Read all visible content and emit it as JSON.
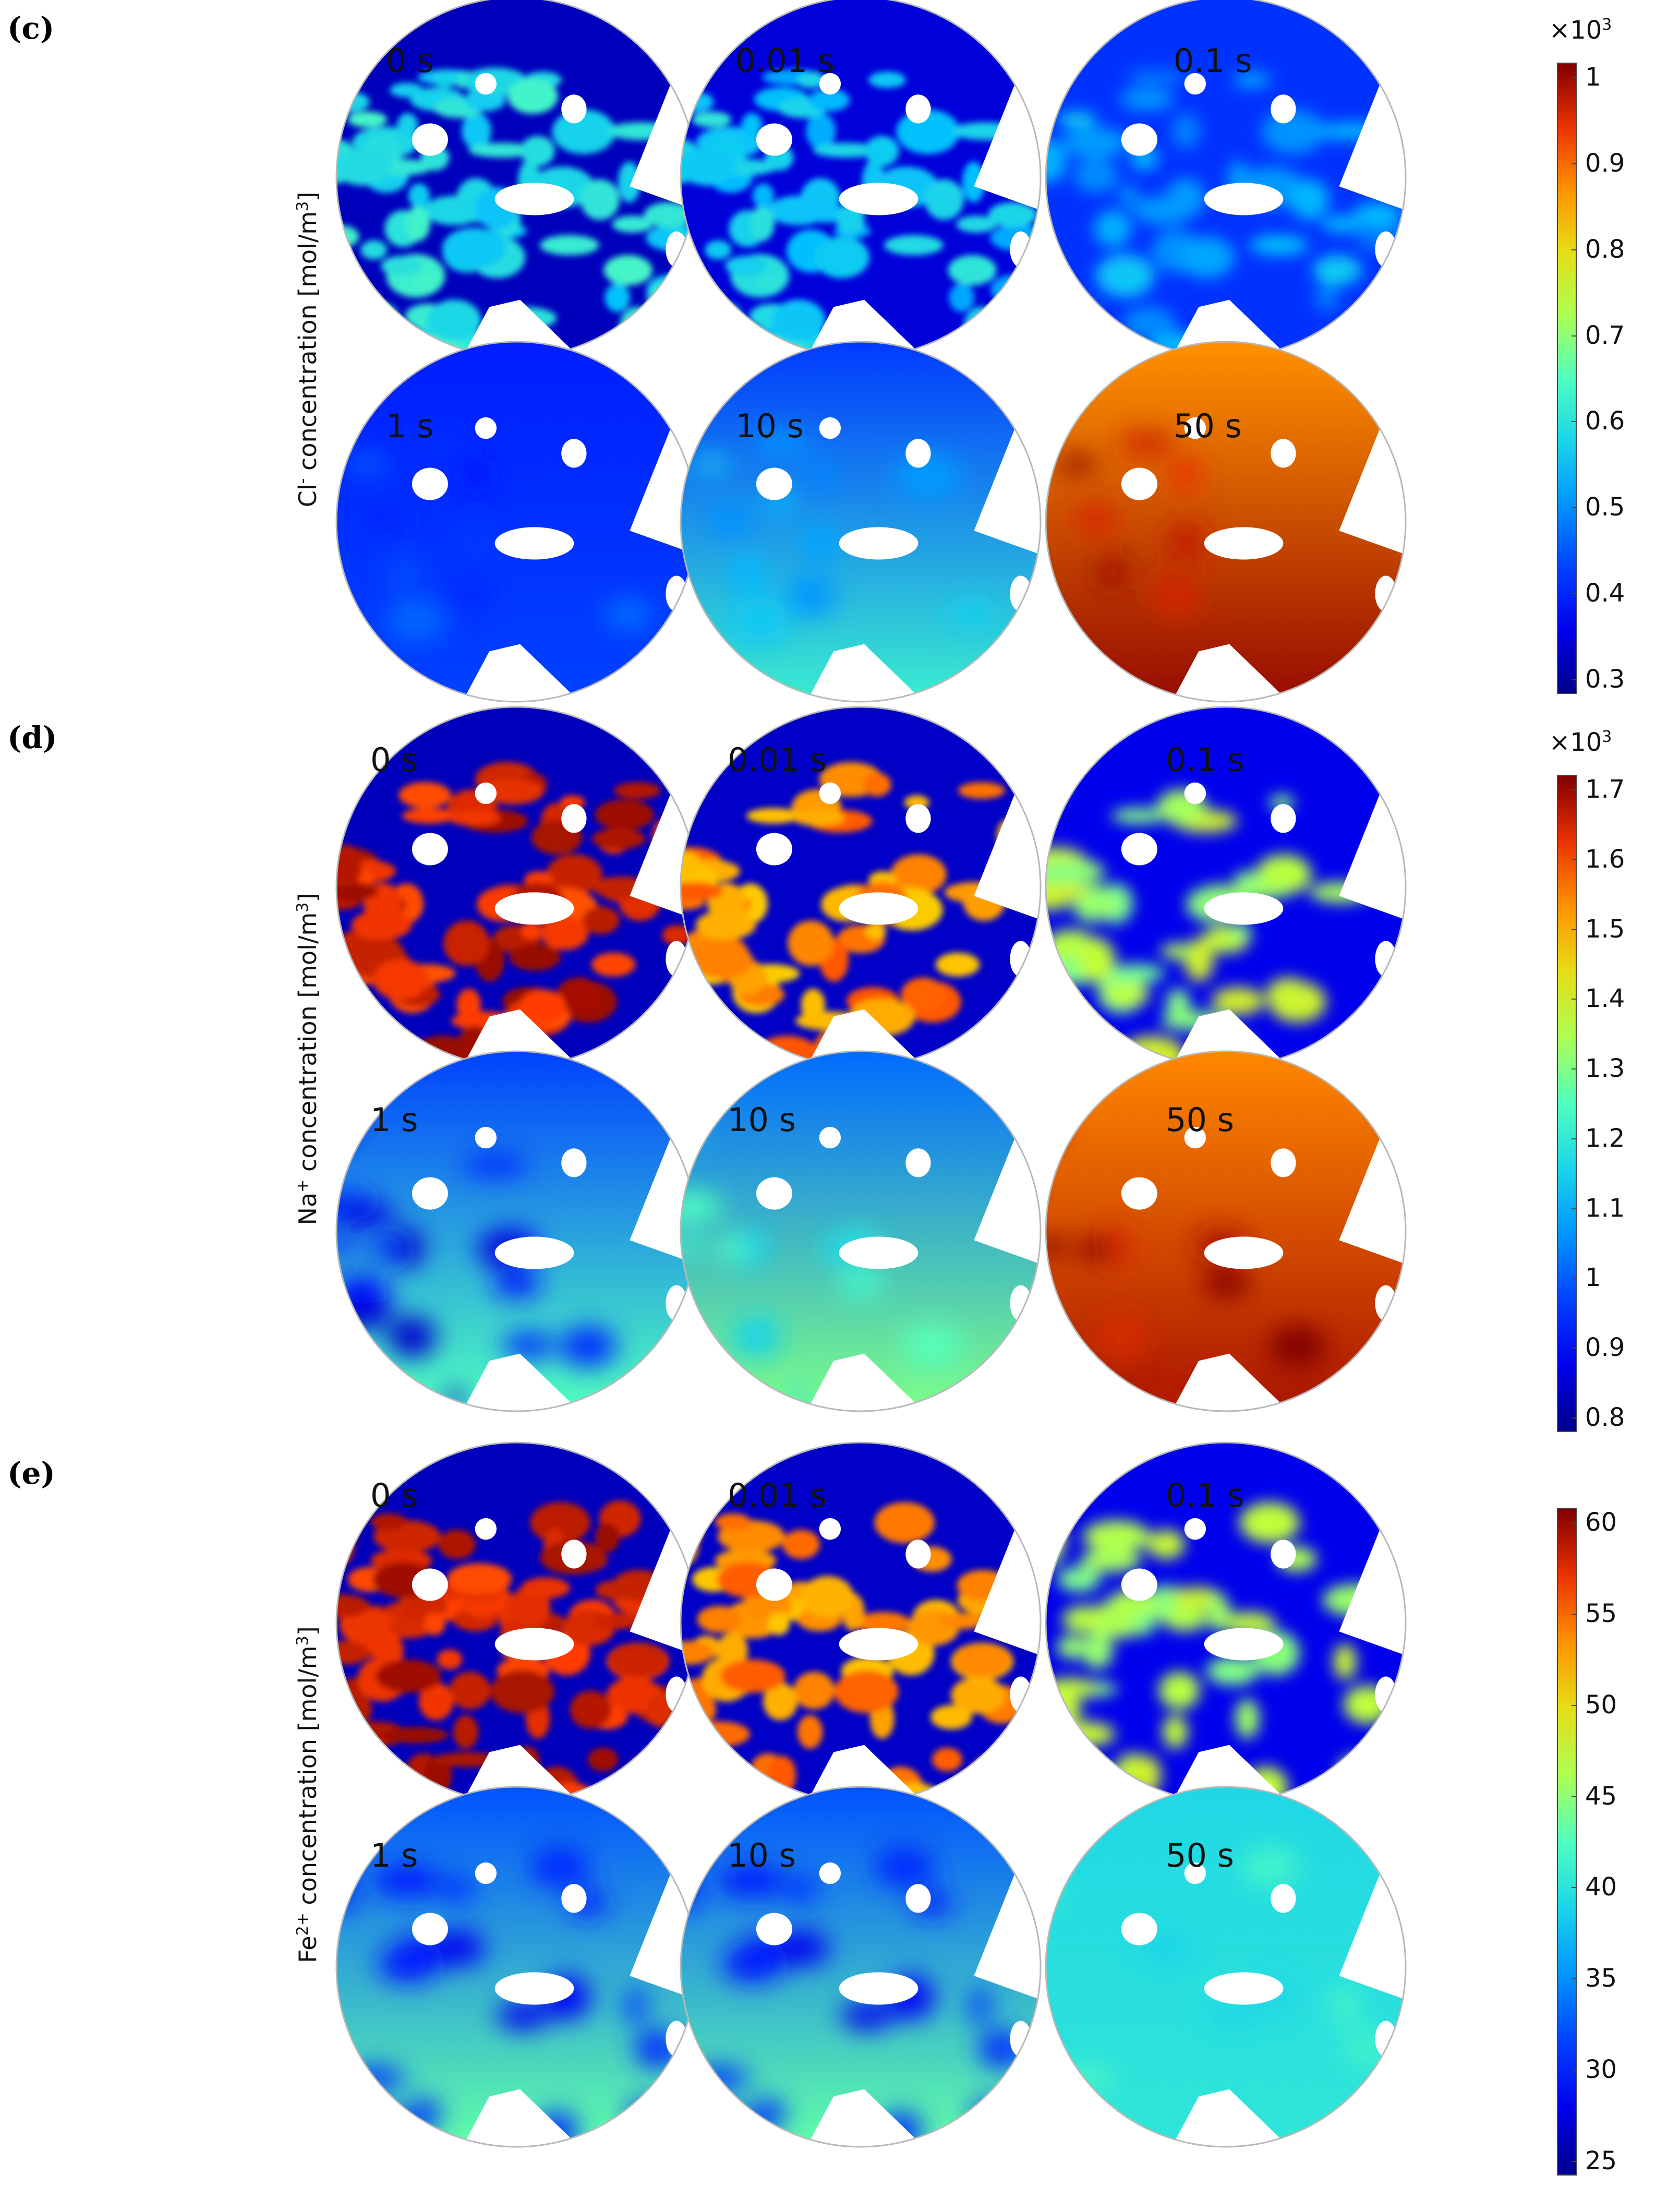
{
  "panels": [
    {
      "letter": "(c)",
      "ylabel_main": "Cl",
      "ylabel_sup": "-",
      "ylabel_rest": " concentration [mol/m",
      "ylabel_unit_sup": "3",
      "ylabel_end": "]",
      "times": [
        "0 s",
        "0.01 s",
        "0.1 s",
        "1 s",
        "10 s",
        "50 s"
      ],
      "colorbar": {
        "exp_prefix": "×10",
        "exp_sup": "3",
        "ticks": [
          "1",
          "0.9",
          "0.8",
          "0.7",
          "0.6",
          "0.5",
          "0.4",
          "0.3"
        ]
      }
    },
    {
      "letter": "(d)",
      "ylabel_main": "Na",
      "ylabel_sup": "+",
      "ylabel_rest": " concentration [mol/m",
      "ylabel_unit_sup": "3",
      "ylabel_end": "]",
      "times": [
        "0 s",
        "0.01 s",
        "0.1 s",
        "1 s",
        "10 s",
        "50 s"
      ],
      "colorbar": {
        "exp_prefix": "×10",
        "exp_sup": "3",
        "ticks": [
          "1.7",
          "1.6",
          "1.5",
          "1.4",
          "1.3",
          "1.2",
          "1.1",
          "1",
          "0.9",
          "0.8"
        ]
      }
    },
    {
      "letter": "(e)",
      "ylabel_main": "Fe",
      "ylabel_sup": "2+",
      "ylabel_rest": " concentration [mol/m",
      "ylabel_unit_sup": "3",
      "ylabel_end": "]",
      "times": [
        "0 s",
        "0.01 s",
        "0.1 s",
        "1 s",
        "10 s",
        "50 s"
      ],
      "colorbar": {
        "exp_prefix": "",
        "exp_sup": "",
        "ticks": [
          "60",
          "55",
          "50",
          "45",
          "40",
          "35",
          "30",
          "25"
        ]
      }
    }
  ]
}
